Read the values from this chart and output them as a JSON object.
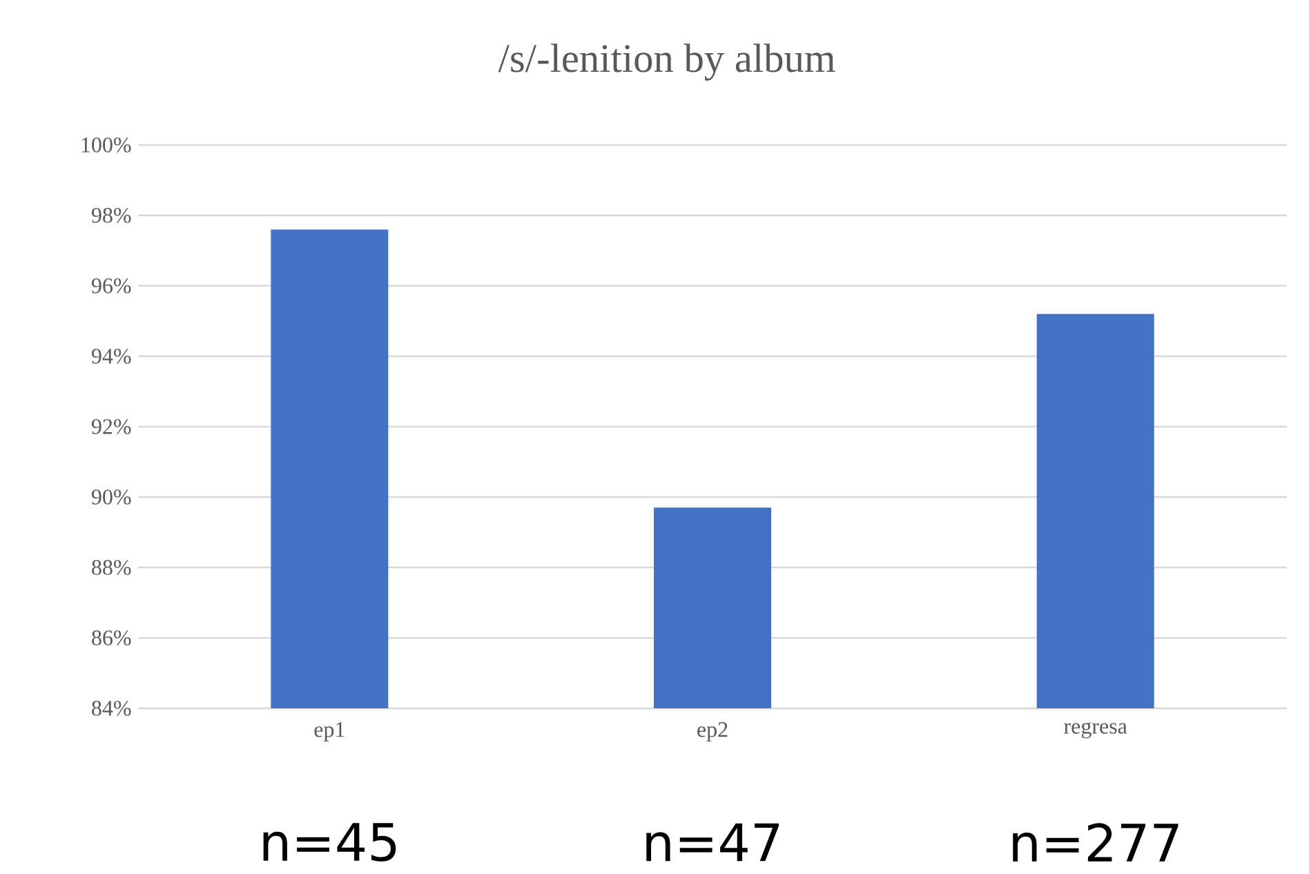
{
  "chart_data": {
    "type": "bar",
    "title": "/s/-lenition by album",
    "categories": [
      "ep1",
      "ep2",
      "regresa"
    ],
    "values": [
      97.6,
      89.7,
      95.2
    ],
    "color": "#4472c4",
    "ylim": [
      84,
      100
    ],
    "yticks": [
      {
        "value": 84,
        "label": "84%"
      },
      {
        "value": 86,
        "label": "86%"
      },
      {
        "value": 88,
        "label": "88%"
      },
      {
        "value": 90,
        "label": "90%"
      },
      {
        "value": 92,
        "label": "92%"
      },
      {
        "value": 94,
        "label": "94%"
      },
      {
        "value": 96,
        "label": "96%"
      },
      {
        "value": 98,
        "label": "98%"
      },
      {
        "value": 100,
        "label": "100%"
      }
    ],
    "grid": "y",
    "annotations": [
      "n=45",
      "n=47",
      "n=277"
    ]
  }
}
